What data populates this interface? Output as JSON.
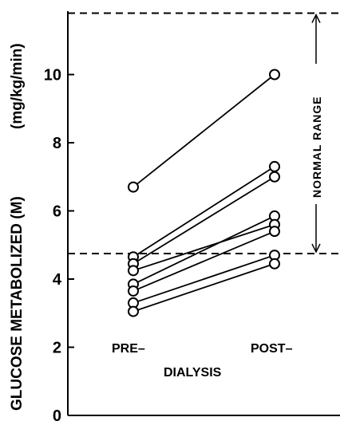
{
  "chart_data": {
    "type": "line",
    "ylabel_main": "GLUCOSE METABOLIZED (M)",
    "ylabel_unit": "(mg/kg/min)",
    "ylim": [
      0,
      12
    ],
    "yticks": [
      "0",
      "2",
      "4",
      "6",
      "8",
      "10"
    ],
    "categories": [
      {
        "key": "pre",
        "label": "PRE–"
      },
      {
        "key": "post",
        "label": "POST–"
      }
    ],
    "group_label": "DIALYSIS",
    "annotation": "NORMAL RANGE",
    "normal_range": [
      4.75,
      11.8
    ],
    "series": [
      {
        "values": [
          6.7,
          10.0
        ]
      },
      {
        "values": [
          4.65,
          7.3
        ]
      },
      {
        "values": [
          4.45,
          7.0
        ]
      },
      {
        "values": [
          3.85,
          5.85
        ]
      },
      {
        "values": [
          4.25,
          5.6
        ]
      },
      {
        "values": [
          3.65,
          5.4
        ]
      },
      {
        "values": [
          3.3,
          4.7
        ]
      },
      {
        "values": [
          3.05,
          4.45
        ]
      }
    ],
    "colors": {
      "ink": "#000000",
      "marker_fill": "#ffffff"
    }
  }
}
